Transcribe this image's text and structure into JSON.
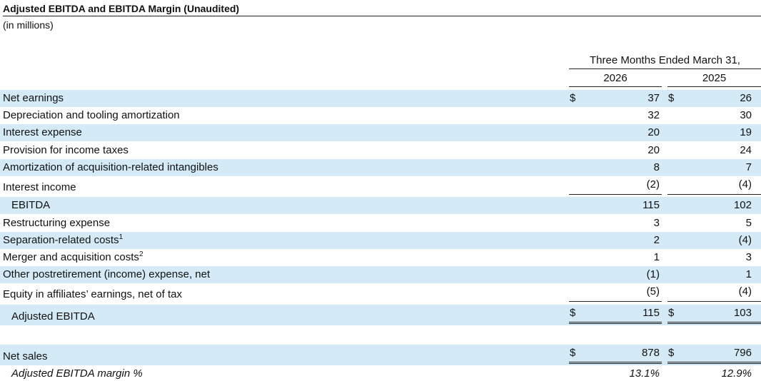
{
  "header": {
    "title": "Adjusted EBITDA and EBITDA Margin (Unaudited)",
    "units": "(in millions)",
    "period_label": "Three Months Ended March 31,",
    "year_1": "2026",
    "year_2": "2025"
  },
  "rows": [
    {
      "label": "Net earnings",
      "dollar_1": "$",
      "v1": "37",
      "dollar_2": "$",
      "v2": "26"
    },
    {
      "label": "Depreciation and tooling amortization",
      "v1": "32",
      "v2": "30"
    },
    {
      "label": "Interest expense",
      "v1": "20",
      "v2": "19"
    },
    {
      "label": "Provision for income taxes",
      "v1": "20",
      "v2": "24"
    },
    {
      "label": "Amortization of acquisition-related intangibles",
      "v1": "8",
      "v2": "7"
    },
    {
      "label": "Interest income",
      "v1": "(2)",
      "v2": "(4)"
    },
    {
      "label": "EBITDA",
      "v1": "115",
      "v2": "102"
    },
    {
      "label": "Restructuring expense",
      "v1": "3",
      "v2": "5"
    },
    {
      "label": "Separation-related costs",
      "sup": "1",
      "v1": "2",
      "v2": "(4)"
    },
    {
      "label": "Merger and acquisition costs",
      "sup": "2",
      "v1": "1",
      "v2": "3"
    },
    {
      "label": "Other postretirement (income) expense, net",
      "v1": "(1)",
      "v2": "1"
    },
    {
      "label": "Equity in affiliates’ earnings, net of tax",
      "v1": "(5)",
      "v2": "(4)"
    },
    {
      "label": "Adjusted EBITDA",
      "dollar_1": "$",
      "v1": "115",
      "dollar_2": "$",
      "v2": "103"
    },
    {
      "label": "Net sales",
      "dollar_1": "$",
      "v1": "878",
      "dollar_2": "$",
      "v2": "796"
    },
    {
      "label": "Adjusted EBITDA margin %",
      "v1": "13.1%",
      "v2": "12.9%"
    }
  ],
  "colors": {
    "row_shade": "#d4ebf7",
    "text": "#111111",
    "rule": "#222222"
  }
}
